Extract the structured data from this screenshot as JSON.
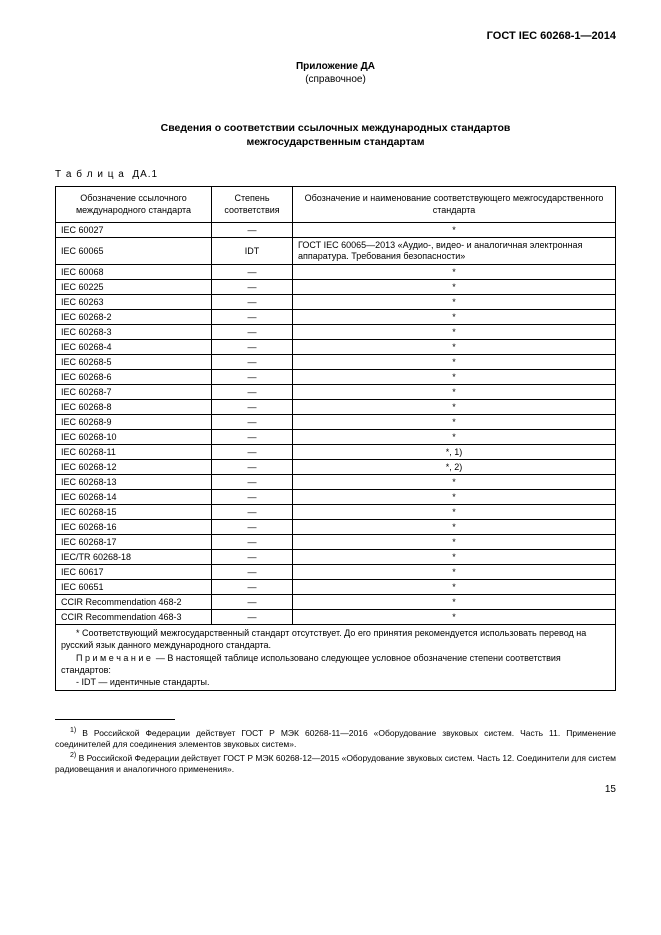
{
  "header": "ГОСТ IEC 60268-1—2014",
  "appendix": {
    "line1": "Приложение ДА",
    "line2": "(справочное)"
  },
  "title": {
    "line1": "Сведения о соответствии ссылочных международных стандартов",
    "line2": "межгосударственным стандартам"
  },
  "table_label": "Т а б л и ц а  ДА.1",
  "columns": {
    "c1": "Обозначение ссылочного международного стандарта",
    "c2": "Степень соответствия",
    "c3": "Обозначение и наименование соответствующего межгосударственного стандарта"
  },
  "rows": [
    {
      "c1": "IEC 60027",
      "c2": "—",
      "c3": "*"
    },
    {
      "c1": "IEC 60065",
      "c2": "IDT",
      "c3": "ГОСТ IEC 60065—2013 «Аудио-, видео- и аналогичная электронная аппаратура. Требования безопасности»",
      "left": true
    },
    {
      "c1": "IEC 60068",
      "c2": "—",
      "c3": "*"
    },
    {
      "c1": "IEC 60225",
      "c2": "—",
      "c3": "*"
    },
    {
      "c1": "IEC 60263",
      "c2": "—",
      "c3": "*"
    },
    {
      "c1": "IEC 60268-2",
      "c2": "—",
      "c3": "*"
    },
    {
      "c1": "IEC 60268-3",
      "c2": "—",
      "c3": "*"
    },
    {
      "c1": "IEC 60268-4",
      "c2": "—",
      "c3": "*"
    },
    {
      "c1": "IEC 60268-5",
      "c2": "—",
      "c3": "*"
    },
    {
      "c1": "IEC 60268-6",
      "c2": "—",
      "c3": "*"
    },
    {
      "c1": "IEC 60268-7",
      "c2": "—",
      "c3": "*"
    },
    {
      "c1": "IEC 60268-8",
      "c2": "—",
      "c3": "*"
    },
    {
      "c1": "IEC 60268-9",
      "c2": "—",
      "c3": "*"
    },
    {
      "c1": "IEC 60268-10",
      "c2": "—",
      "c3": "*"
    },
    {
      "c1": "IEC 60268-11",
      "c2": "—",
      "c3": "*, 1)"
    },
    {
      "c1": "IEC 60268-12",
      "c2": "—",
      "c3": "*, 2)"
    },
    {
      "c1": "IEC 60268-13",
      "c2": "—",
      "c3": "*"
    },
    {
      "c1": "IEC 60268-14",
      "c2": "—",
      "c3": "*"
    },
    {
      "c1": "IEC 60268-15",
      "c2": "—",
      "c3": "*"
    },
    {
      "c1": "IEC 60268-16",
      "c2": "—",
      "c3": "*"
    },
    {
      "c1": "IEC 60268-17",
      "c2": "—",
      "c3": "*"
    },
    {
      "c1": "IEC/TR 60268-18",
      "c2": "—",
      "c3": "*"
    },
    {
      "c1": "IEC 60617",
      "c2": "—",
      "c3": "*"
    },
    {
      "c1": "IEC 60651",
      "c2": "—",
      "c3": "*"
    },
    {
      "c1": "CCIR Recommendation 468-2",
      "c2": "—",
      "c3": "*"
    },
    {
      "c1": "CCIR Recommendation 468-3",
      "c2": "—",
      "c3": "*"
    }
  ],
  "table_footnote": {
    "p1": "* Соответствующий межгосударственный стандарт отсутствует. До его принятия рекомендуется использовать перевод на русский язык данного международного стандарта.",
    "p2": "П р и м е ч а н и е  — В настоящей таблице использовано следующее условное обозначение степени соответствия стандартов:",
    "p3": "- IDT — идентичные стандарты."
  },
  "page_footnotes": {
    "f1_sup": "1)",
    "f1": " В Российской Федерации действует ГОСТ Р МЭК 60268-11—2016 «Оборудование звуковых систем. Часть 11. Применение соединителей для соединения элементов звуковых систем».",
    "f2_sup": "2)",
    "f2": " В Российской Федерации действует ГОСТ Р МЭК 60268-12—2015 «Оборудование звуковых систем. Часть 12. Соединители для систем радиовещания и аналогичного применения»."
  },
  "page_number": "15"
}
